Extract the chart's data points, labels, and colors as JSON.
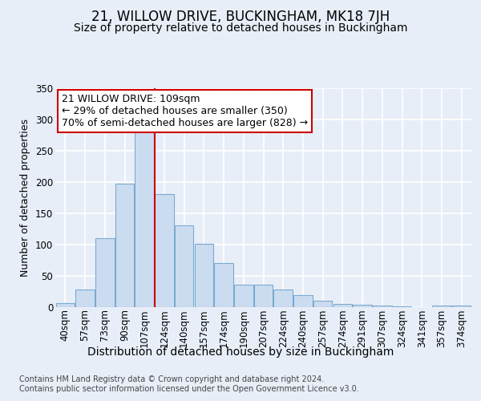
{
  "title": "21, WILLOW DRIVE, BUCKINGHAM, MK18 7JH",
  "subtitle": "Size of property relative to detached houses in Buckingham",
  "xlabel": "Distribution of detached houses by size in Buckingham",
  "ylabel": "Number of detached properties",
  "categories": [
    "40sqm",
    "57sqm",
    "73sqm",
    "90sqm",
    "107sqm",
    "124sqm",
    "140sqm",
    "157sqm",
    "174sqm",
    "190sqm",
    "207sqm",
    "224sqm",
    "240sqm",
    "257sqm",
    "274sqm",
    "291sqm",
    "307sqm",
    "324sqm",
    "341sqm",
    "357sqm",
    "374sqm"
  ],
  "values": [
    6,
    27,
    110,
    197,
    290,
    180,
    130,
    101,
    70,
    35,
    35,
    28,
    19,
    9,
    5,
    3,
    2,
    1,
    0,
    2,
    2
  ],
  "bar_color": "#ccdcf0",
  "bar_edge_color": "#7aaad0",
  "property_line_index": 4,
  "property_line_color": "#cc0000",
  "annotation_text": "21 WILLOW DRIVE: 109sqm\n← 29% of detached houses are smaller (350)\n70% of semi-detached houses are larger (828) →",
  "annotation_box_facecolor": "#ffffff",
  "annotation_box_edgecolor": "#cc0000",
  "background_color": "#e8eef8",
  "plot_background_color": "#e8eef8",
  "grid_color": "#ffffff",
  "title_fontsize": 12,
  "subtitle_fontsize": 10,
  "xlabel_fontsize": 10,
  "ylabel_fontsize": 9,
  "tick_fontsize": 8.5,
  "ann_fontsize": 9,
  "footer_line1": "Contains HM Land Registry data © Crown copyright and database right 2024.",
  "footer_line2": "Contains public sector information licensed under the Open Government Licence v3.0.",
  "ylim": [
    0,
    350
  ],
  "yticks": [
    0,
    50,
    100,
    150,
    200,
    250,
    300,
    350
  ]
}
